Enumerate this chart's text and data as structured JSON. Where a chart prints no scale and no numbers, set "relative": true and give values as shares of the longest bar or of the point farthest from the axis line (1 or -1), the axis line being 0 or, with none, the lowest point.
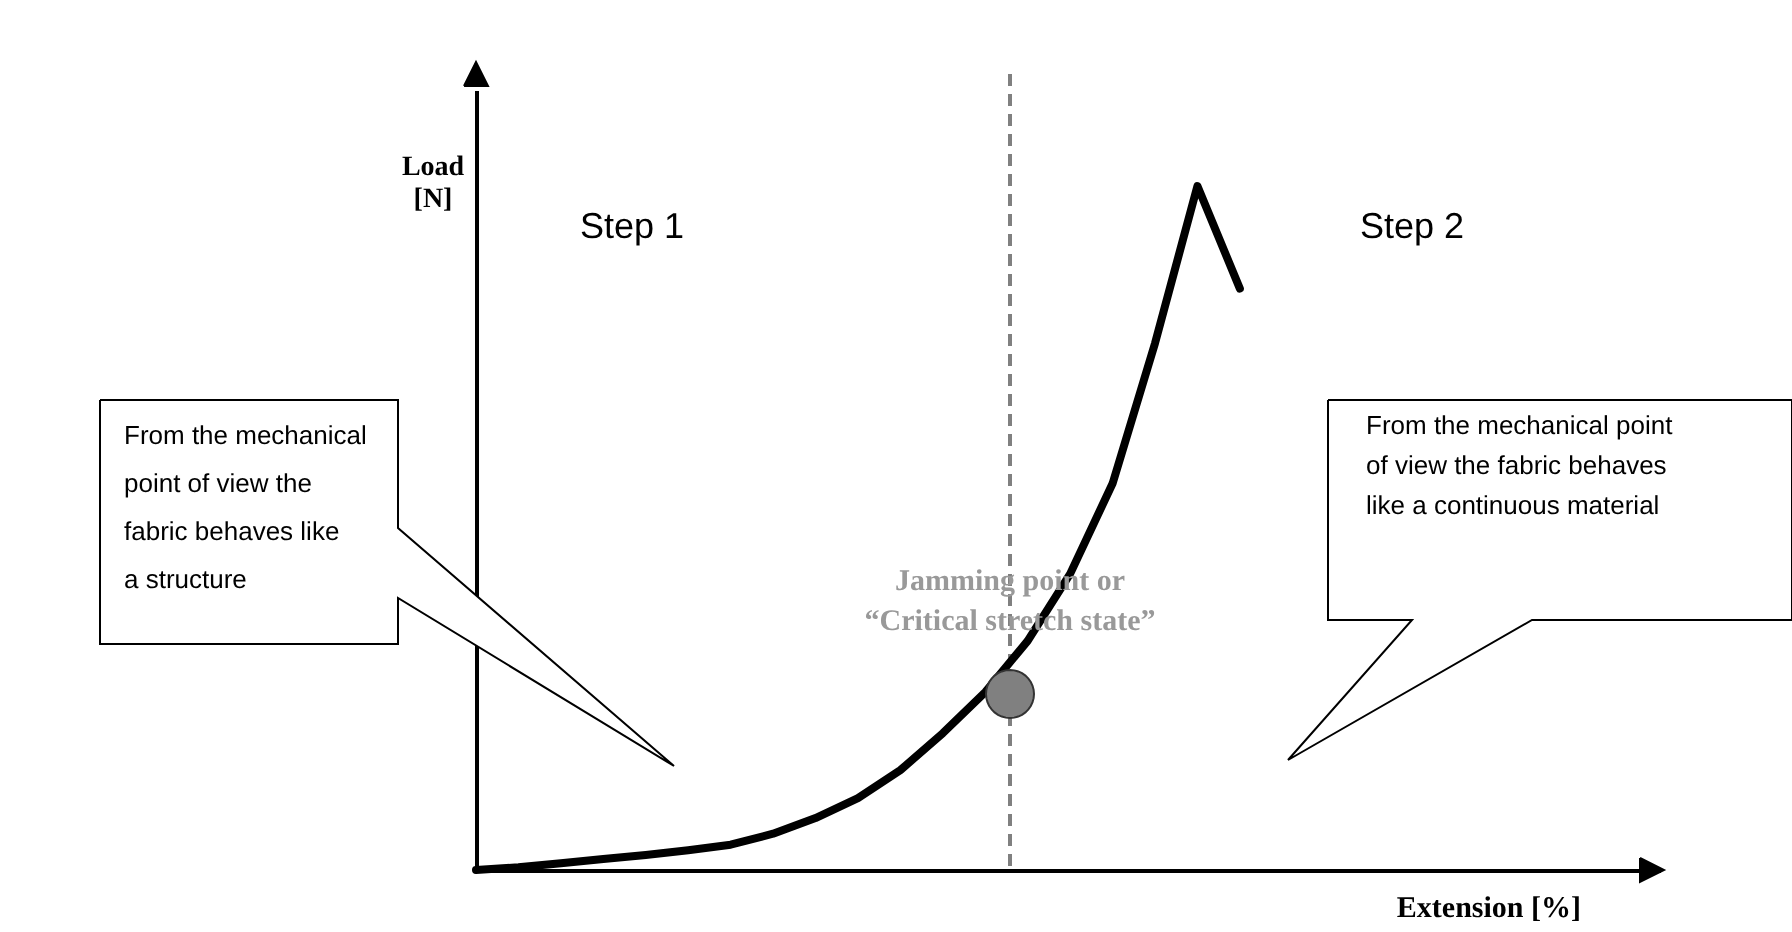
{
  "chart_data": {
    "type": "line",
    "relative": true,
    "xlabel": "Extension [%]",
    "ylabel": "Load [N]",
    "grid": false,
    "legend": false,
    "marker": "none",
    "line_style": "solid",
    "categories": [
      null,
      null,
      null,
      null,
      null,
      null,
      null,
      null,
      null,
      null,
      null,
      null,
      null,
      null,
      null,
      null,
      null,
      null,
      null,
      null,
      null,
      null,
      null,
      null,
      null,
      null,
      null,
      null
    ],
    "series": [
      {
        "color": "#000000",
        "values": [
          0,
          0.004,
          0.01,
          0.016,
          0.022,
          0.029,
          0.037,
          0.053,
          0.076,
          0.105,
          0.146,
          0.2,
          0.26,
          0.335,
          0.433,
          0.565,
          0.77,
          1,
          0.85,
          null,
          null,
          null,
          null,
          null,
          null,
          null,
          null,
          null
        ]
      }
    ],
    "annotations": [
      "Step 1",
      "Step 2",
      "From the mechanical point of view  the fabric behaves like a structure",
      "From the mechanical point of view the fabric behaves like a continuous material",
      "Jamming point or “Critical stretch state”"
    ]
  }
}
